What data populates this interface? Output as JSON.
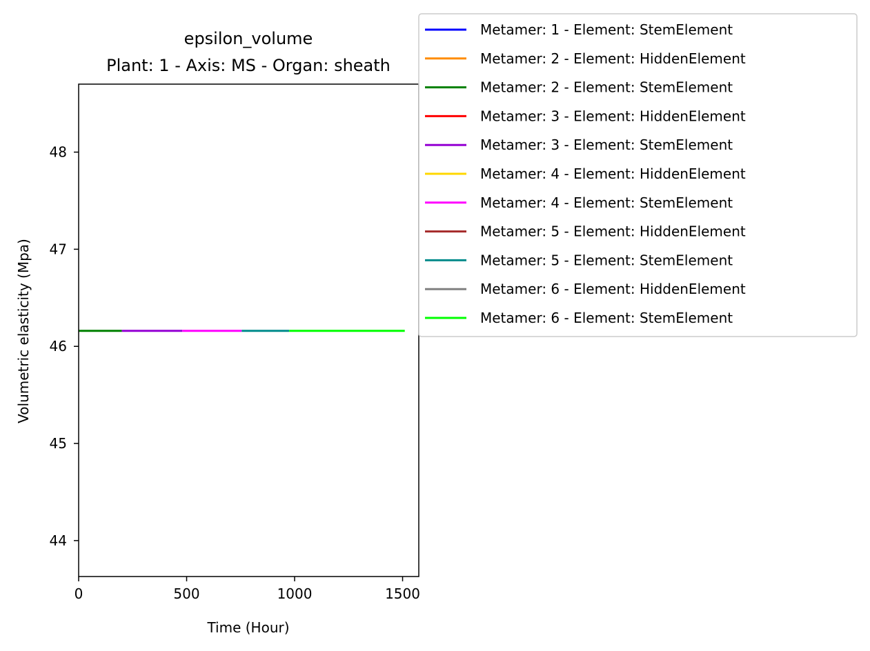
{
  "chart_data": {
    "type": "line",
    "title_line1": "epsilon_volume",
    "title_line2": "Plant: 1 - Axis: MS - Organ: sheath",
    "xlabel": "Time (Hour)",
    "ylabel": "Volumetric elasticity (Mpa)",
    "xlim": [
      0,
      1575
    ],
    "ylim": [
      43.63,
      48.7
    ],
    "xticks": [
      0,
      500,
      1000,
      1500
    ],
    "xtick_labels": [
      "0",
      "500",
      "1000",
      "1500"
    ],
    "yticks": [
      44,
      45,
      46,
      47,
      48
    ],
    "ytick_labels": [
      "44",
      "45",
      "46",
      "47",
      "48"
    ],
    "grid": false,
    "legend_placement": "upper right, outside",
    "series": [
      {
        "name": "Metamer: 1 - Element: StemElement",
        "color": "#0000ff",
        "x": [],
        "y": []
      },
      {
        "name": "Metamer: 2 - Element: HiddenElement",
        "color": "#ff8c00",
        "x": [],
        "y": []
      },
      {
        "name": "Metamer: 2 - Element: StemElement",
        "color": "#008000",
        "x": [
          0,
          200
        ],
        "y": [
          46.16,
          46.16
        ]
      },
      {
        "name": "Metamer: 3 - Element: HiddenElement",
        "color": "#ff0000",
        "x": [],
        "y": []
      },
      {
        "name": "Metamer: 3 - Element: StemElement",
        "color": "#9400d3",
        "x": [
          200,
          480
        ],
        "y": [
          46.16,
          46.16
        ]
      },
      {
        "name": "Metamer: 4 - Element: HiddenElement",
        "color": "#ffd700",
        "x": [],
        "y": []
      },
      {
        "name": "Metamer: 4 - Element: StemElement",
        "color": "#ff00ff",
        "x": [
          480,
          755
        ],
        "y": [
          46.16,
          46.16
        ]
      },
      {
        "name": "Metamer: 5 - Element: HiddenElement",
        "color": "#a52a2a",
        "x": [],
        "y": []
      },
      {
        "name": "Metamer: 5 - Element: StemElement",
        "color": "#008b8b",
        "x": [
          755,
          975
        ],
        "y": [
          46.16,
          46.16
        ]
      },
      {
        "name": "Metamer: 6 - Element: HiddenElement",
        "color": "#808080",
        "x": [],
        "y": []
      },
      {
        "name": "Metamer: 6 - Element: StemElement",
        "color": "#00ff00",
        "x": [
          975,
          1510
        ],
        "y": [
          46.16,
          46.16
        ]
      }
    ]
  }
}
